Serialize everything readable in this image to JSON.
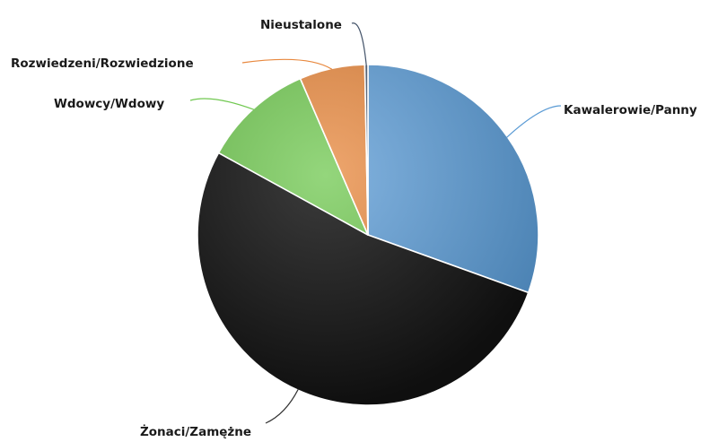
{
  "chart_data": {
    "type": "pie",
    "title": "",
    "start_angle_deg": 0,
    "direction": "clockwise",
    "categories": [
      "Kawalerowie/Panny",
      "Żonaci/Zamężne",
      "Wdowcy/Wdowy",
      "Rozwiedzeni/Rozwiedzione",
      "Nieustalone"
    ],
    "values": [
      30.5,
      52.5,
      10.5,
      6.2,
      0.3
    ],
    "colors": [
      "#5b9bd5",
      "#111111",
      "#70c850",
      "#e8883e",
      "#44546a"
    ],
    "label_colors": [
      "#5b9bd5",
      "#333333",
      "#70c850",
      "#e8883e",
      "#44546a"
    ],
    "legend": "none",
    "data_labels": "category names with leader lines"
  }
}
